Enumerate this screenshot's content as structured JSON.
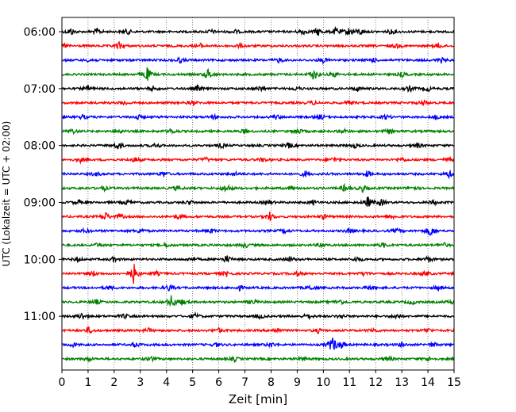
{
  "chart_data": {
    "type": "line",
    "title": "",
    "xlabel": "Zeit  [min]",
    "ylabel": "UTC (Lokalzeit = UTC + 02:00)",
    "xlim": [
      0,
      15
    ],
    "x_ticks": [
      0,
      1,
      2,
      3,
      4,
      5,
      6,
      7,
      8,
      9,
      10,
      11,
      12,
      13,
      14,
      15
    ],
    "y_tick_labels": [
      "06:00",
      "07:00",
      "08:00",
      "09:00",
      "10:00",
      "11:00"
    ],
    "grid": "vertical dotted",
    "trace_interval_min": 15,
    "colors_cycle": [
      "#000000",
      "#ff0000",
      "#0000ff",
      "#008000"
    ],
    "traces": [
      {
        "start": "06:00",
        "color": "#000000",
        "events": [
          [
            0.35,
            0.5
          ],
          [
            1.35,
            0.4
          ],
          [
            2.5,
            0.35
          ],
          [
            5.7,
            0.3
          ],
          [
            6.6,
            0.3
          ],
          [
            9.2,
            0.45
          ],
          [
            9.8,
            0.55
          ],
          [
            10.5,
            0.6
          ],
          [
            11.0,
            0.55
          ],
          [
            11.4,
            0.45
          ],
          [
            12.6,
            0.35
          ]
        ]
      },
      {
        "start": "06:15",
        "color": "#ff0000",
        "events": [
          [
            0.1,
            0.3
          ],
          [
            2.2,
            0.5
          ],
          [
            5.3,
            0.3
          ],
          [
            6.8,
            0.25
          ],
          [
            12.8,
            0.3
          ],
          [
            14.4,
            0.35
          ]
        ]
      },
      {
        "start": "06:30",
        "color": "#0000ff",
        "events": [
          [
            1.1,
            0.3
          ],
          [
            4.5,
            0.35
          ],
          [
            8.3,
            0.3
          ],
          [
            10.0,
            0.35
          ],
          [
            11.9,
            0.3
          ],
          [
            14.5,
            0.35
          ]
        ]
      },
      {
        "start": "06:45",
        "color": "#008000",
        "events": [
          [
            3.25,
            1.0
          ],
          [
            5.6,
            0.75
          ],
          [
            9.65,
            0.8
          ],
          [
            10.4,
            0.35
          ],
          [
            13.0,
            0.3
          ]
        ]
      },
      {
        "start": "07:00",
        "color": "#000000",
        "events": [
          [
            1.0,
            0.35
          ],
          [
            3.5,
            0.3
          ],
          [
            5.2,
            0.45
          ],
          [
            7.6,
            0.35
          ],
          [
            9.0,
            0.3
          ],
          [
            11.3,
            0.3
          ],
          [
            13.3,
            0.4
          ],
          [
            14.0,
            0.35
          ]
        ]
      },
      {
        "start": "07:15",
        "color": "#ff0000",
        "events": [
          [
            2.4,
            0.3
          ],
          [
            5.0,
            0.3
          ],
          [
            9.6,
            0.25
          ],
          [
            11.0,
            0.3
          ],
          [
            13.8,
            0.3
          ]
        ]
      },
      {
        "start": "07:30",
        "color": "#0000ff",
        "events": [
          [
            0.8,
            0.3
          ],
          [
            2.9,
            0.35
          ],
          [
            5.8,
            0.3
          ],
          [
            8.2,
            0.3
          ],
          [
            9.9,
            0.35
          ],
          [
            12.4,
            0.3
          ],
          [
            14.3,
            0.3
          ]
        ]
      },
      {
        "start": "07:45",
        "color": "#008000",
        "events": [
          [
            0.4,
            0.35
          ],
          [
            2.2,
            0.3
          ],
          [
            4.2,
            0.35
          ],
          [
            7.0,
            0.3
          ],
          [
            9.0,
            0.5
          ],
          [
            10.8,
            0.3
          ],
          [
            12.5,
            0.35
          ]
        ]
      },
      {
        "start": "08:00",
        "color": "#000000",
        "events": [
          [
            2.15,
            0.55
          ],
          [
            3.6,
            0.3
          ],
          [
            6.1,
            0.35
          ],
          [
            8.7,
            0.4
          ],
          [
            11.2,
            0.3
          ],
          [
            13.6,
            0.35
          ]
        ]
      },
      {
        "start": "08:15",
        "color": "#ff0000",
        "events": [
          [
            0.7,
            0.3
          ],
          [
            2.8,
            0.35
          ],
          [
            5.5,
            0.3
          ],
          [
            7.7,
            0.3
          ],
          [
            10.4,
            0.35
          ],
          [
            13.0,
            0.3
          ],
          [
            14.8,
            0.3
          ]
        ]
      },
      {
        "start": "08:30",
        "color": "#0000ff",
        "events": [
          [
            1.3,
            0.3
          ],
          [
            3.9,
            0.35
          ],
          [
            6.6,
            0.3
          ],
          [
            9.3,
            0.35
          ],
          [
            11.7,
            0.45
          ],
          [
            14.8,
            0.45
          ]
        ]
      },
      {
        "start": "08:45",
        "color": "#008000",
        "events": [
          [
            1.6,
            0.3
          ],
          [
            4.4,
            0.3
          ],
          [
            6.3,
            0.65
          ],
          [
            8.8,
            0.3
          ],
          [
            10.8,
            0.4
          ],
          [
            11.5,
            0.45
          ],
          [
            13.4,
            0.3
          ]
        ]
      },
      {
        "start": "09:00",
        "color": "#000000",
        "events": [
          [
            0.6,
            0.35
          ],
          [
            2.5,
            0.35
          ],
          [
            4.9,
            0.3
          ],
          [
            7.9,
            0.35
          ],
          [
            9.6,
            0.3
          ],
          [
            11.7,
            0.8
          ],
          [
            12.2,
            0.45
          ],
          [
            14.2,
            0.3
          ]
        ]
      },
      {
        "start": "09:15",
        "color": "#ff0000",
        "events": [
          [
            1.65,
            0.65
          ],
          [
            2.2,
            0.35
          ],
          [
            4.5,
            0.3
          ],
          [
            7.95,
            0.6
          ],
          [
            10.0,
            0.35
          ],
          [
            12.6,
            0.35
          ]
        ]
      },
      {
        "start": "09:30",
        "color": "#0000ff",
        "events": [
          [
            0.9,
            0.3
          ],
          [
            3.0,
            0.35
          ],
          [
            5.7,
            0.3
          ],
          [
            8.5,
            0.3
          ],
          [
            11.0,
            0.35
          ],
          [
            12.8,
            0.3
          ],
          [
            14.1,
            0.8
          ]
        ]
      },
      {
        "start": "09:45",
        "color": "#008000",
        "events": [
          [
            1.4,
            0.3
          ],
          [
            4.0,
            0.3
          ],
          [
            7.0,
            0.35
          ],
          [
            9.9,
            0.3
          ],
          [
            12.3,
            0.3
          ],
          [
            14.6,
            0.3
          ]
        ]
      },
      {
        "start": "10:00",
        "color": "#000000",
        "events": [
          [
            0.6,
            0.3
          ],
          [
            2.0,
            0.35
          ],
          [
            5.0,
            0.3
          ],
          [
            6.3,
            0.55
          ],
          [
            8.7,
            0.35
          ],
          [
            11.3,
            0.35
          ],
          [
            14.0,
            0.4
          ]
        ]
      },
      {
        "start": "10:15",
        "color": "#ff0000",
        "events": [
          [
            1.2,
            0.35
          ],
          [
            2.75,
            1.4
          ],
          [
            3.6,
            0.3
          ],
          [
            6.3,
            0.35
          ],
          [
            9.0,
            0.3
          ],
          [
            11.6,
            0.3
          ],
          [
            13.9,
            0.35
          ]
        ]
      },
      {
        "start": "10:30",
        "color": "#0000ff",
        "events": [
          [
            1.8,
            0.3
          ],
          [
            4.1,
            0.45
          ],
          [
            6.8,
            0.3
          ],
          [
            9.5,
            0.35
          ],
          [
            11.8,
            0.3
          ],
          [
            14.4,
            0.35
          ]
        ]
      },
      {
        "start": "10:45",
        "color": "#008000",
        "events": [
          [
            1.3,
            0.35
          ],
          [
            4.2,
            1.0
          ],
          [
            4.6,
            0.4
          ],
          [
            7.3,
            0.35
          ],
          [
            10.6,
            0.45
          ],
          [
            13.4,
            0.3
          ],
          [
            14.9,
            0.3
          ]
        ]
      },
      {
        "start": "11:00",
        "color": "#000000",
        "events": [
          [
            0.75,
            0.45
          ],
          [
            2.4,
            0.3
          ],
          [
            5.1,
            0.35
          ],
          [
            7.6,
            0.3
          ],
          [
            9.4,
            0.4
          ],
          [
            10.7,
            0.3
          ],
          [
            12.8,
            0.35
          ]
        ]
      },
      {
        "start": "11:15",
        "color": "#ff0000",
        "events": [
          [
            1.05,
            0.45
          ],
          [
            3.3,
            0.3
          ],
          [
            6.0,
            0.3
          ],
          [
            8.2,
            0.35
          ],
          [
            9.8,
            0.3
          ],
          [
            11.9,
            0.35
          ],
          [
            14.0,
            0.3
          ]
        ]
      },
      {
        "start": "11:30",
        "color": "#0000ff",
        "events": [
          [
            0.4,
            0.3
          ],
          [
            2.8,
            0.35
          ],
          [
            5.9,
            0.3
          ],
          [
            8.0,
            0.35
          ],
          [
            10.35,
            1.15
          ],
          [
            10.7,
            0.45
          ],
          [
            13.0,
            0.3
          ],
          [
            14.2,
            0.3
          ]
        ]
      },
      {
        "start": "11:45",
        "color": "#008000",
        "events": [
          [
            1.0,
            0.3
          ],
          [
            3.4,
            0.35
          ],
          [
            6.6,
            0.3
          ],
          [
            9.2,
            0.3
          ],
          [
            12.45,
            0.45
          ],
          [
            14.0,
            0.3
          ]
        ]
      }
    ]
  }
}
